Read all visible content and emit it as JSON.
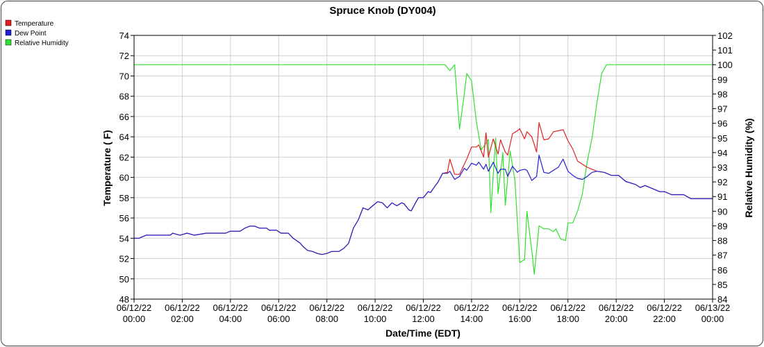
{
  "chart_data": {
    "type": "line",
    "title": "Spruce Knob (DY004)",
    "xlabel": "Date/Time (EDT)",
    "ylabel": "Temperature ( F)",
    "y2label": "Relative Humidity (%)",
    "grid": true,
    "legend_position": "top-left",
    "xlim": [
      0,
      24
    ],
    "ylim": [
      48,
      74
    ],
    "y2lim": [
      84,
      102
    ],
    "x_ticks": [
      {
        "date": "06/12/22",
        "time": "00:00"
      },
      {
        "date": "06/12/22",
        "time": "02:00"
      },
      {
        "date": "06/12/22",
        "time": "04:00"
      },
      {
        "date": "06/12/22",
        "time": "06:00"
      },
      {
        "date": "06/12/22",
        "time": "08:00"
      },
      {
        "date": "06/12/22",
        "time": "10:00"
      },
      {
        "date": "06/12/22",
        "time": "12:00"
      },
      {
        "date": "06/12/22",
        "time": "14:00"
      },
      {
        "date": "06/12/22",
        "time": "16:00"
      },
      {
        "date": "06/12/22",
        "time": "18:00"
      },
      {
        "date": "06/12/22",
        "time": "20:00"
      },
      {
        "date": "06/12/22",
        "time": "22:00"
      },
      {
        "date": "06/13/22",
        "time": "00:00"
      }
    ],
    "y_ticks": [
      "48",
      "50",
      "52",
      "54",
      "56",
      "58",
      "60",
      "62",
      "64",
      "66",
      "68",
      "70",
      "72",
      "74"
    ],
    "y2_ticks": [
      "84",
      "85",
      "86",
      "87",
      "88",
      "89",
      "90",
      "91",
      "92",
      "93",
      "94",
      "95",
      "96",
      "97",
      "98",
      "99",
      "100",
      "101",
      "102"
    ],
    "series": [
      {
        "name": "Temperature",
        "color": "#e02020",
        "axis": "left",
        "points": [
          [
            0,
            54.0
          ],
          [
            0.2,
            54.0
          ],
          [
            0.5,
            54.3
          ],
          [
            1.0,
            54.3
          ],
          [
            1.5,
            54.3
          ],
          [
            1.6,
            54.5
          ],
          [
            1.9,
            54.3
          ],
          [
            2.2,
            54.5
          ],
          [
            2.5,
            54.3
          ],
          [
            3.0,
            54.5
          ],
          [
            3.5,
            54.5
          ],
          [
            3.8,
            54.5
          ],
          [
            4.0,
            54.7
          ],
          [
            4.4,
            54.7
          ],
          [
            4.6,
            55.0
          ],
          [
            4.8,
            55.2
          ],
          [
            5.0,
            55.2
          ],
          [
            5.2,
            55.0
          ],
          [
            5.5,
            55.0
          ],
          [
            5.6,
            54.8
          ],
          [
            5.9,
            54.8
          ],
          [
            6.1,
            54.5
          ],
          [
            6.4,
            54.5
          ],
          [
            6.6,
            54.0
          ],
          [
            6.9,
            53.5
          ],
          [
            7.0,
            53.2
          ],
          [
            7.2,
            52.8
          ],
          [
            7.4,
            52.7
          ],
          [
            7.6,
            52.5
          ],
          [
            7.8,
            52.4
          ],
          [
            8.0,
            52.5
          ],
          [
            8.2,
            52.7
          ],
          [
            8.5,
            52.7
          ],
          [
            8.7,
            53.0
          ],
          [
            8.9,
            53.5
          ],
          [
            9.1,
            55.0
          ],
          [
            9.3,
            55.8
          ],
          [
            9.5,
            57.0
          ],
          [
            9.7,
            56.8
          ],
          [
            9.9,
            57.2
          ],
          [
            10.1,
            57.6
          ],
          [
            10.3,
            57.5
          ],
          [
            10.5,
            57.0
          ],
          [
            10.7,
            57.5
          ],
          [
            10.9,
            57.2
          ],
          [
            11.1,
            57.5
          ],
          [
            11.2,
            57.4
          ],
          [
            11.4,
            56.8
          ],
          [
            11.5,
            56.7
          ],
          [
            11.7,
            57.6
          ],
          [
            11.8,
            58.0
          ],
          [
            12.0,
            58.0
          ],
          [
            12.2,
            58.6
          ],
          [
            12.3,
            58.5
          ],
          [
            12.5,
            59.2
          ],
          [
            12.6,
            59.5
          ],
          [
            12.8,
            60.4
          ],
          [
            13.0,
            60.5
          ],
          [
            13.1,
            61.8
          ],
          [
            13.3,
            60.3
          ],
          [
            13.5,
            60.3
          ],
          [
            13.7,
            61.3
          ],
          [
            13.8,
            61.8
          ],
          [
            14.0,
            63.0
          ],
          [
            14.2,
            63.0
          ],
          [
            14.3,
            63.2
          ],
          [
            14.5,
            62.0
          ],
          [
            14.6,
            64.4
          ],
          [
            14.7,
            62.0
          ],
          [
            14.9,
            63.8
          ],
          [
            15.1,
            62.3
          ],
          [
            15.2,
            63.7
          ],
          [
            15.4,
            62.5
          ],
          [
            15.5,
            62.2
          ],
          [
            15.7,
            64.3
          ],
          [
            15.9,
            64.6
          ],
          [
            16.0,
            64.8
          ],
          [
            16.2,
            63.8
          ],
          [
            16.3,
            64.5
          ],
          [
            16.5,
            64.0
          ],
          [
            16.7,
            62.5
          ],
          [
            16.8,
            65.4
          ],
          [
            17.0,
            63.7
          ],
          [
            17.2,
            63.8
          ],
          [
            17.4,
            64.5
          ],
          [
            17.6,
            64.6
          ],
          [
            17.8,
            64.7
          ],
          [
            18.0,
            63.6
          ],
          [
            18.2,
            62.8
          ],
          [
            18.4,
            61.6
          ],
          [
            18.6,
            61.3
          ],
          [
            18.8,
            61.0
          ],
          [
            19.0,
            60.8
          ],
          [
            19.2,
            60.6
          ],
          [
            19.5,
            60.5
          ],
          [
            19.8,
            60.2
          ],
          [
            20.1,
            60.2
          ],
          [
            20.4,
            59.6
          ],
          [
            20.8,
            59.3
          ],
          [
            21.0,
            59.0
          ],
          [
            21.2,
            59.2
          ],
          [
            21.5,
            58.9
          ],
          [
            21.8,
            58.6
          ],
          [
            22.0,
            58.6
          ],
          [
            22.3,
            58.3
          ],
          [
            22.6,
            58.3
          ],
          [
            22.8,
            58.3
          ],
          [
            23.1,
            57.9
          ],
          [
            23.5,
            57.9
          ],
          [
            24.0,
            57.9
          ]
        ]
      },
      {
        "name": "Dew Point",
        "color": "#2020d0",
        "axis": "left",
        "points": [
          [
            0,
            54.0
          ],
          [
            0.2,
            54.0
          ],
          [
            0.5,
            54.3
          ],
          [
            1.0,
            54.3
          ],
          [
            1.5,
            54.3
          ],
          [
            1.6,
            54.5
          ],
          [
            1.9,
            54.3
          ],
          [
            2.2,
            54.5
          ],
          [
            2.5,
            54.3
          ],
          [
            3.0,
            54.5
          ],
          [
            3.5,
            54.5
          ],
          [
            3.8,
            54.5
          ],
          [
            4.0,
            54.7
          ],
          [
            4.4,
            54.7
          ],
          [
            4.6,
            55.0
          ],
          [
            4.8,
            55.2
          ],
          [
            5.0,
            55.2
          ],
          [
            5.2,
            55.0
          ],
          [
            5.5,
            55.0
          ],
          [
            5.6,
            54.8
          ],
          [
            5.9,
            54.8
          ],
          [
            6.1,
            54.5
          ],
          [
            6.4,
            54.5
          ],
          [
            6.6,
            54.0
          ],
          [
            6.9,
            53.5
          ],
          [
            7.0,
            53.2
          ],
          [
            7.2,
            52.8
          ],
          [
            7.4,
            52.7
          ],
          [
            7.6,
            52.5
          ],
          [
            7.8,
            52.4
          ],
          [
            8.0,
            52.5
          ],
          [
            8.2,
            52.7
          ],
          [
            8.5,
            52.7
          ],
          [
            8.7,
            53.0
          ],
          [
            8.9,
            53.5
          ],
          [
            9.1,
            55.0
          ],
          [
            9.3,
            55.8
          ],
          [
            9.5,
            57.0
          ],
          [
            9.7,
            56.8
          ],
          [
            9.9,
            57.2
          ],
          [
            10.1,
            57.6
          ],
          [
            10.3,
            57.5
          ],
          [
            10.5,
            57.0
          ],
          [
            10.7,
            57.5
          ],
          [
            10.9,
            57.2
          ],
          [
            11.1,
            57.5
          ],
          [
            11.2,
            57.4
          ],
          [
            11.4,
            56.8
          ],
          [
            11.5,
            56.7
          ],
          [
            11.7,
            57.6
          ],
          [
            11.8,
            58.0
          ],
          [
            12.0,
            58.0
          ],
          [
            12.2,
            58.6
          ],
          [
            12.3,
            58.5
          ],
          [
            12.5,
            59.2
          ],
          [
            12.6,
            59.5
          ],
          [
            12.8,
            60.4
          ],
          [
            13.0,
            60.4
          ],
          [
            13.1,
            60.6
          ],
          [
            13.3,
            59.8
          ],
          [
            13.5,
            60.1
          ],
          [
            13.7,
            60.9
          ],
          [
            13.8,
            60.7
          ],
          [
            14.0,
            61.4
          ],
          [
            14.2,
            61.2
          ],
          [
            14.3,
            61.5
          ],
          [
            14.5,
            60.8
          ],
          [
            14.6,
            61.3
          ],
          [
            14.7,
            60.6
          ],
          [
            14.9,
            61.5
          ],
          [
            15.1,
            60.4
          ],
          [
            15.2,
            60.8
          ],
          [
            15.4,
            60.8
          ],
          [
            15.5,
            60.1
          ],
          [
            15.7,
            61.1
          ],
          [
            15.9,
            60.5
          ],
          [
            16.0,
            60.7
          ],
          [
            16.2,
            60.8
          ],
          [
            16.3,
            60.7
          ],
          [
            16.5,
            59.7
          ],
          [
            16.7,
            60.1
          ],
          [
            16.8,
            62.2
          ],
          [
            17.0,
            60.5
          ],
          [
            17.2,
            60.4
          ],
          [
            17.4,
            60.7
          ],
          [
            17.6,
            61.0
          ],
          [
            17.8,
            61.8
          ],
          [
            18.0,
            60.6
          ],
          [
            18.2,
            60.2
          ],
          [
            18.4,
            59.9
          ],
          [
            18.6,
            59.8
          ],
          [
            18.8,
            60.1
          ],
          [
            19.0,
            60.5
          ],
          [
            19.2,
            60.6
          ],
          [
            19.5,
            60.5
          ],
          [
            19.8,
            60.2
          ],
          [
            20.1,
            60.2
          ],
          [
            20.4,
            59.6
          ],
          [
            20.8,
            59.3
          ],
          [
            21.0,
            59.0
          ],
          [
            21.2,
            59.2
          ],
          [
            21.5,
            58.9
          ],
          [
            21.8,
            58.6
          ],
          [
            22.0,
            58.6
          ],
          [
            22.3,
            58.3
          ],
          [
            22.6,
            58.3
          ],
          [
            22.8,
            58.3
          ],
          [
            23.1,
            57.9
          ],
          [
            23.5,
            57.9
          ],
          [
            24.0,
            57.9
          ]
        ]
      },
      {
        "name": "Relative Humidity",
        "color": "#30e030",
        "axis": "right",
        "points": [
          [
            0,
            100
          ],
          [
            12.9,
            100
          ],
          [
            13.1,
            99.6
          ],
          [
            13.3,
            100
          ],
          [
            13.5,
            95.6
          ],
          [
            13.7,
            98.0
          ],
          [
            13.8,
            99.4
          ],
          [
            14.0,
            98.9
          ],
          [
            14.2,
            96.1
          ],
          [
            14.4,
            94.2
          ],
          [
            14.5,
            94.4
          ],
          [
            14.7,
            94.9
          ],
          [
            14.8,
            89.9
          ],
          [
            15.0,
            95.0
          ],
          [
            15.1,
            91.2
          ],
          [
            15.3,
            94.0
          ],
          [
            15.4,
            90.4
          ],
          [
            15.6,
            94.1
          ],
          [
            15.8,
            92.1
          ],
          [
            16.0,
            86.5
          ],
          [
            16.2,
            86.7
          ],
          [
            16.3,
            90.0
          ],
          [
            16.5,
            87.3
          ],
          [
            16.6,
            85.7
          ],
          [
            16.8,
            89.0
          ],
          [
            17.0,
            88.8
          ],
          [
            17.2,
            88.8
          ],
          [
            17.4,
            88.6
          ],
          [
            17.5,
            88.8
          ],
          [
            17.7,
            88.1
          ],
          [
            17.9,
            88.0
          ],
          [
            18.0,
            89.2
          ],
          [
            18.2,
            89.2
          ],
          [
            18.4,
            90.0
          ],
          [
            18.6,
            91.2
          ],
          [
            18.8,
            93.4
          ],
          [
            19.0,
            95.0
          ],
          [
            19.2,
            97.4
          ],
          [
            19.4,
            99.4
          ],
          [
            19.6,
            100
          ],
          [
            24.0,
            100
          ]
        ]
      }
    ]
  }
}
